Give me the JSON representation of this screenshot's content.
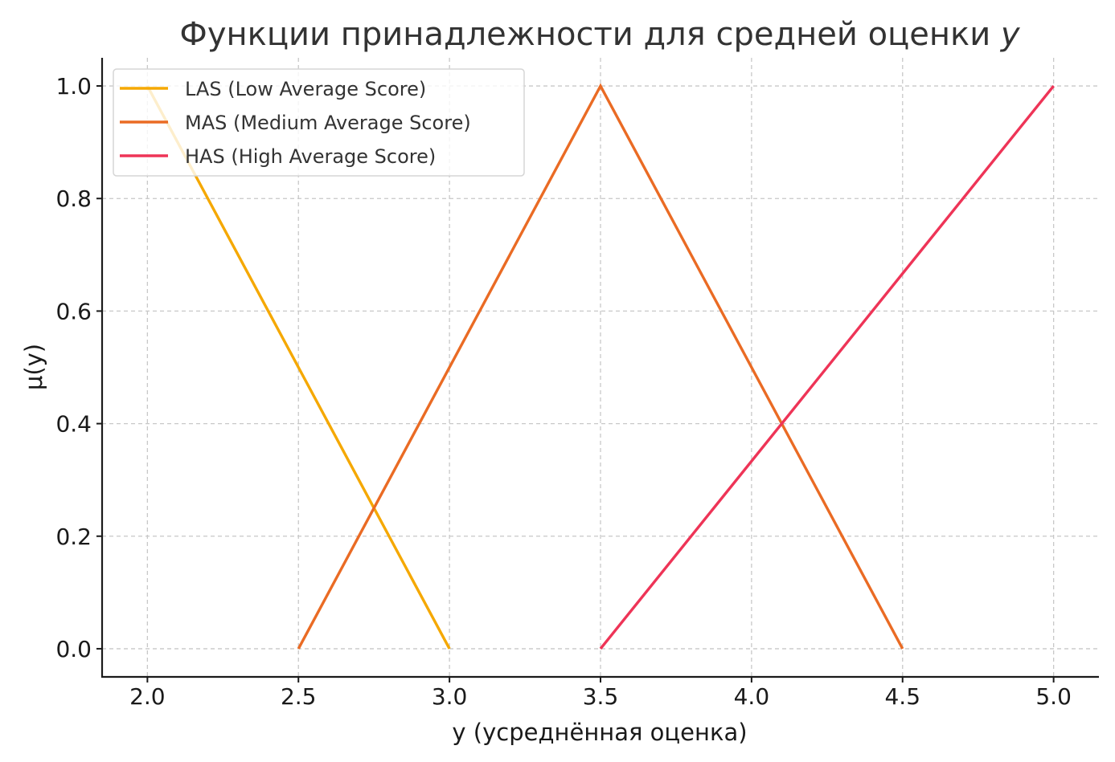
{
  "chart_data": {
    "type": "line",
    "title": "Функции принадлежности для средней оценки y",
    "title_main": "Функции принадлежности для средней оценки",
    "title_var": "y",
    "xlabel": "y (усреднённая оценка)",
    "ylabel": "μ(y)",
    "xlim": [
      1.85,
      5.15
    ],
    "ylim": [
      -0.05,
      1.05
    ],
    "xticks": [
      2.0,
      2.5,
      3.0,
      3.5,
      4.0,
      4.5,
      5.0
    ],
    "xtick_labels": [
      "2.0",
      "2.5",
      "3.0",
      "3.5",
      "4.0",
      "4.5",
      "5.0"
    ],
    "yticks": [
      0.0,
      0.2,
      0.4,
      0.6,
      0.8,
      1.0
    ],
    "ytick_labels": [
      "0.0",
      "0.2",
      "0.4",
      "0.6",
      "0.8",
      "1.0"
    ],
    "grid": true,
    "legend_position": "top-left",
    "series": [
      {
        "name": "LAS (Low Average Score)",
        "color": "#f5a800",
        "x": [
          2.0,
          3.0
        ],
        "y": [
          1.0,
          0.0
        ]
      },
      {
        "name": "MAS (Medium Average Score)",
        "color": "#ea6b24",
        "x": [
          2.5,
          3.5,
          4.5
        ],
        "y": [
          0.0,
          1.0,
          0.0
        ]
      },
      {
        "name": "HAS (High Average Score)",
        "color": "#ee3457",
        "x": [
          3.5,
          5.0
        ],
        "y": [
          0.0,
          1.0
        ]
      }
    ]
  }
}
